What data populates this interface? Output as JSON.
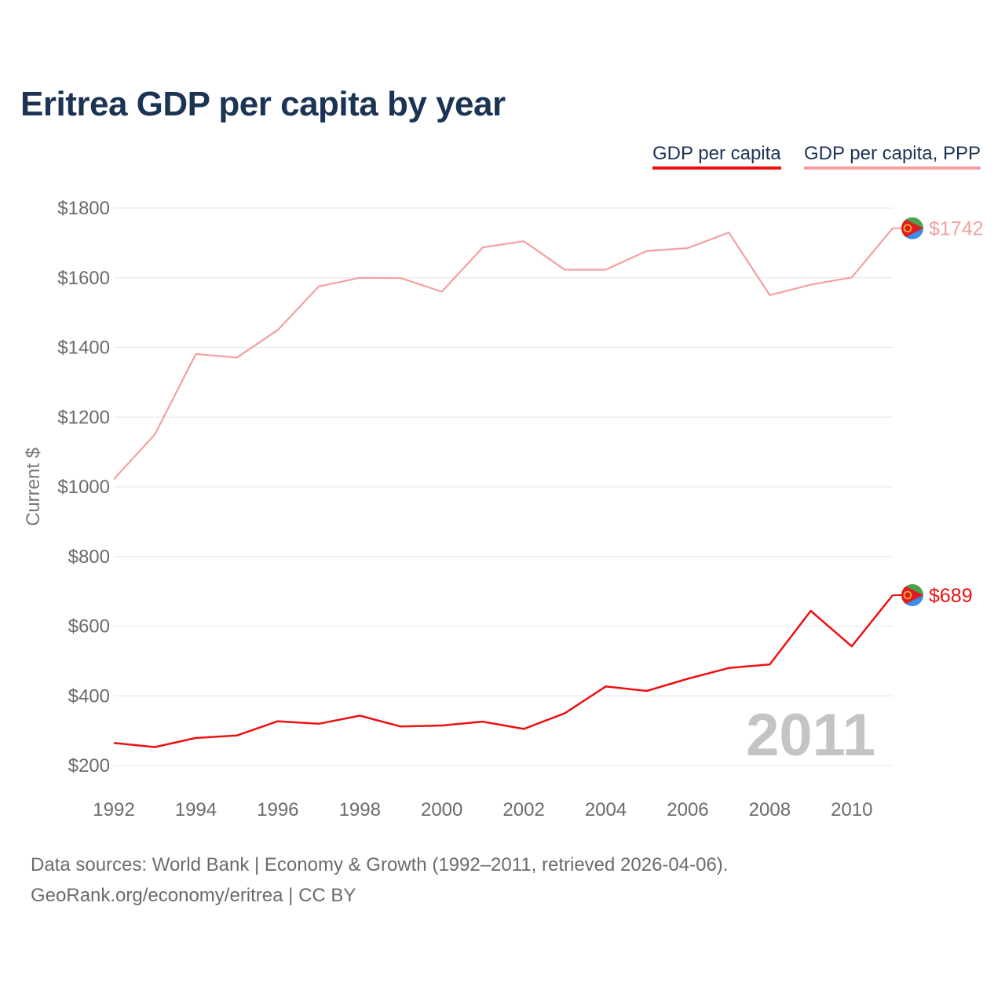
{
  "title": "Eritrea GDP per capita by year",
  "chart_data": {
    "type": "line",
    "title": "Eritrea GDP per capita by year",
    "ylabel": "Current $",
    "ylim": [
      200,
      1800
    ],
    "yticks": [
      200,
      400,
      600,
      800,
      1000,
      1200,
      1400,
      1600,
      1800
    ],
    "ytick_labels": [
      "$200",
      "$400",
      "$600",
      "$800",
      "$1000",
      "$1200",
      "$1400",
      "$1600",
      "$1800"
    ],
    "xlim": [
      1992,
      2011
    ],
    "xticks": [
      1992,
      1994,
      1996,
      1998,
      2000,
      2002,
      2004,
      2006,
      2008,
      2010
    ],
    "xtick_labels": [
      "1992",
      "1994",
      "1996",
      "1998",
      "2000",
      "2002",
      "2004",
      "2006",
      "2008",
      "2010"
    ],
    "x": [
      1992,
      1993,
      1994,
      1995,
      1996,
      1997,
      1998,
      1999,
      2000,
      2001,
      2002,
      2003,
      2004,
      2005,
      2006,
      2007,
      2008,
      2009,
      2010,
      2011
    ],
    "current_year_label": "2011",
    "legend_position": "top-right",
    "series": [
      {
        "name": "GDP per capita",
        "color": "#ee1111",
        "values": [
          265,
          253,
          279,
          286,
          327,
          320,
          343,
          312,
          315,
          326,
          305,
          350,
          427,
          414,
          449,
          480,
          490,
          644,
          542,
          689
        ],
        "end_label": "$689"
      },
      {
        "name": "GDP per capita, PPP",
        "color": "#f4a0a0",
        "values": [
          1022,
          1150,
          1381,
          1371,
          1450,
          1575,
          1600,
          1599,
          1560,
          1687,
          1705,
          1623,
          1623,
          1677,
          1685,
          1730,
          1550,
          1580,
          1601,
          1742
        ],
        "end_label": "$1742"
      }
    ]
  },
  "legend": {
    "gdp_label": "GDP per capita",
    "ppp_label": "GDP per capita, PPP"
  },
  "source": {
    "line1": "Data sources: World Bank | Economy & Growth (1992–2011, retrieved 2026-04-06).",
    "line2": "GeoRank.org/economy/eritrea | CC BY"
  },
  "icons": {
    "end_marker": "eritrea-flag-icon"
  }
}
